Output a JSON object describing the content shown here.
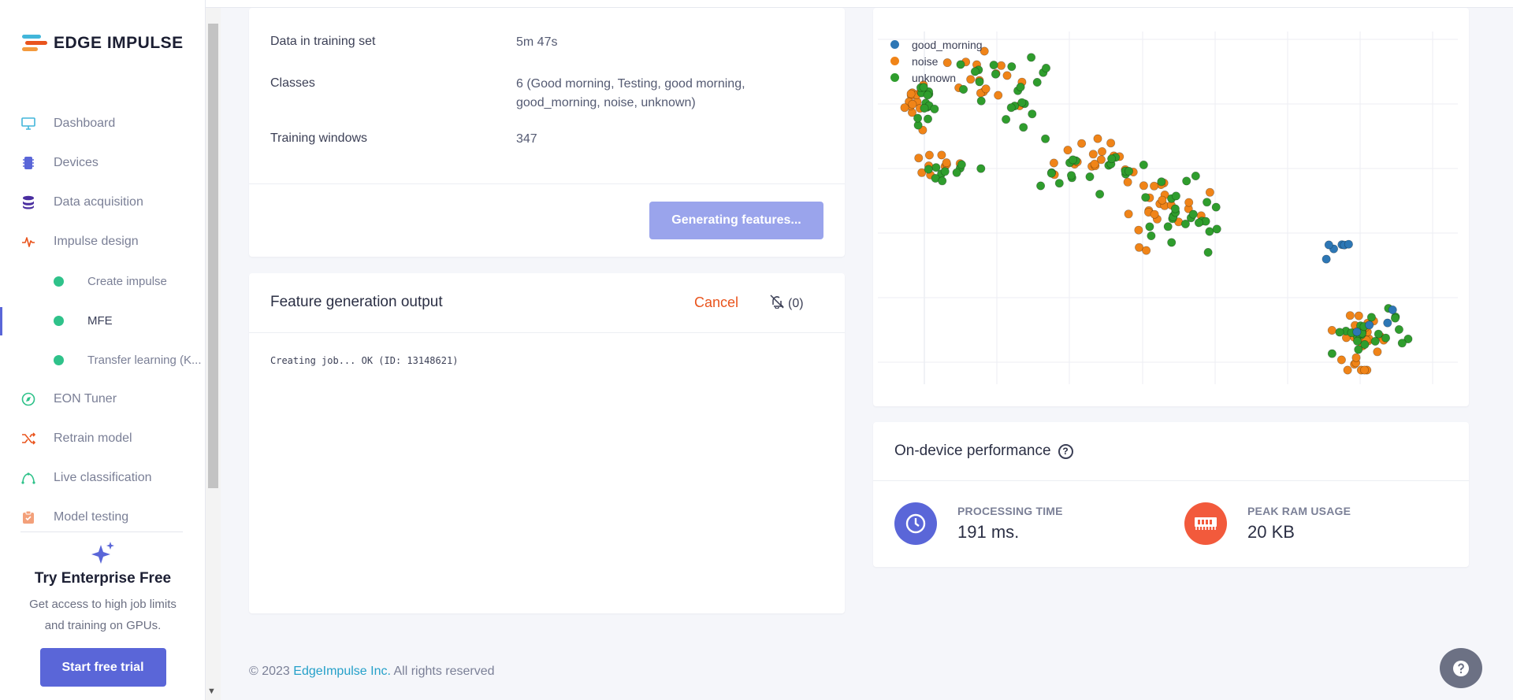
{
  "brand": {
    "name": "EDGE IMPULSE"
  },
  "sidebar": {
    "items": [
      {
        "label": "Dashboard",
        "icon": "monitor-icon",
        "color": "#42b6da"
      },
      {
        "label": "Devices",
        "icon": "chip-icon",
        "color": "#5a66d8"
      },
      {
        "label": "Data acquisition",
        "icon": "database-icon",
        "color": "#4a2ea0"
      },
      {
        "label": "Impulse design",
        "icon": "pulse-icon",
        "color": "#e9541d"
      },
      {
        "label": "Create impulse",
        "icon": "dot-icon",
        "color": "#2fc28a"
      },
      {
        "label": "MFE",
        "icon": "dot-icon",
        "color": "#2fc28a"
      },
      {
        "label": "Transfer learning (K...",
        "icon": "dot-icon",
        "color": "#2fc28a"
      },
      {
        "label": "EON Tuner",
        "icon": "compass-icon",
        "color": "#2fc28a"
      },
      {
        "label": "Retrain model",
        "icon": "shuffle-icon",
        "color": "#e9541d"
      },
      {
        "label": "Live classification",
        "icon": "signal-icon",
        "color": "#2fc28a"
      },
      {
        "label": "Model testing",
        "icon": "clipboard-icon",
        "color": "#f3a07a"
      }
    ],
    "enterprise": {
      "title": "Try Enterprise Free",
      "description": "Get access to high job limits and training on GPUs.",
      "button": "Start free trial"
    }
  },
  "training": {
    "rows": [
      {
        "label": "Data in training set",
        "value": "5m 47s"
      },
      {
        "label": "Classes",
        "value": "6 (Good morning, Testing, good morning, good_morning, noise, unknown)"
      },
      {
        "label": "Training windows",
        "value": "347"
      }
    ],
    "generate_button": "Generating features..."
  },
  "output": {
    "title": "Feature generation output",
    "cancel": "Cancel",
    "notifications": "(0)",
    "log": "Creating job... OK (ID: 13148621)"
  },
  "plot": {
    "legend": [
      {
        "name": "good_morning",
        "color": "#2d77b5"
      },
      {
        "name": "noise",
        "color": "#f08418"
      },
      {
        "name": "unknown",
        "color": "#2f9d2d"
      }
    ]
  },
  "performance": {
    "title": "On-device performance",
    "metrics": [
      {
        "label": "PROCESSING TIME",
        "value": "191 ms.",
        "color": "#5a66d8",
        "icon": "clock-icon"
      },
      {
        "label": "PEAK RAM USAGE",
        "value": "20 KB",
        "color": "#f25a3c",
        "icon": "ram-icon"
      }
    ]
  },
  "footer": {
    "copyright": "© 2023",
    "company": "EdgeImpulse Inc.",
    "rights": "All rights reserved"
  }
}
